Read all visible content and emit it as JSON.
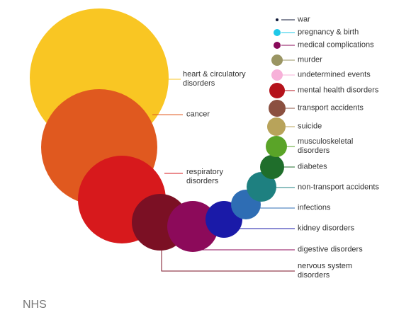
{
  "chart_data": {
    "type": "bubble",
    "categories": [
      "heart & circulatory disorders",
      "cancer",
      "respiratory disorders",
      "nervous system disorders",
      "digestive disorders",
      "kidney disorders",
      "infections",
      "non-transport accidents",
      "diabetes",
      "musculoskeletal disorders",
      "suicide",
      "transport accidents",
      "mental health disorders",
      "undetermined events",
      "murder",
      "medical complications",
      "pregnancy & birth",
      "war"
    ],
    "values": [
      9604,
      6724,
      3844,
      1600,
      1296,
      676,
      441,
      441,
      289,
      225,
      169,
      144,
      121,
      64,
      64,
      25,
      25,
      4
    ],
    "colors": [
      "#f9c623",
      "#e0591f",
      "#d7191c",
      "#7b1024",
      "#8c0a5a",
      "#1a1aa8",
      "#2e6db4",
      "#1e8080",
      "#1f6e2b",
      "#5aa428",
      "#b8a35a",
      "#8b5040",
      "#b5121b",
      "#f7b1d9",
      "#9a9563",
      "#880a5a",
      "#1ec8e8",
      "#101838"
    ]
  },
  "source": "NHS"
}
